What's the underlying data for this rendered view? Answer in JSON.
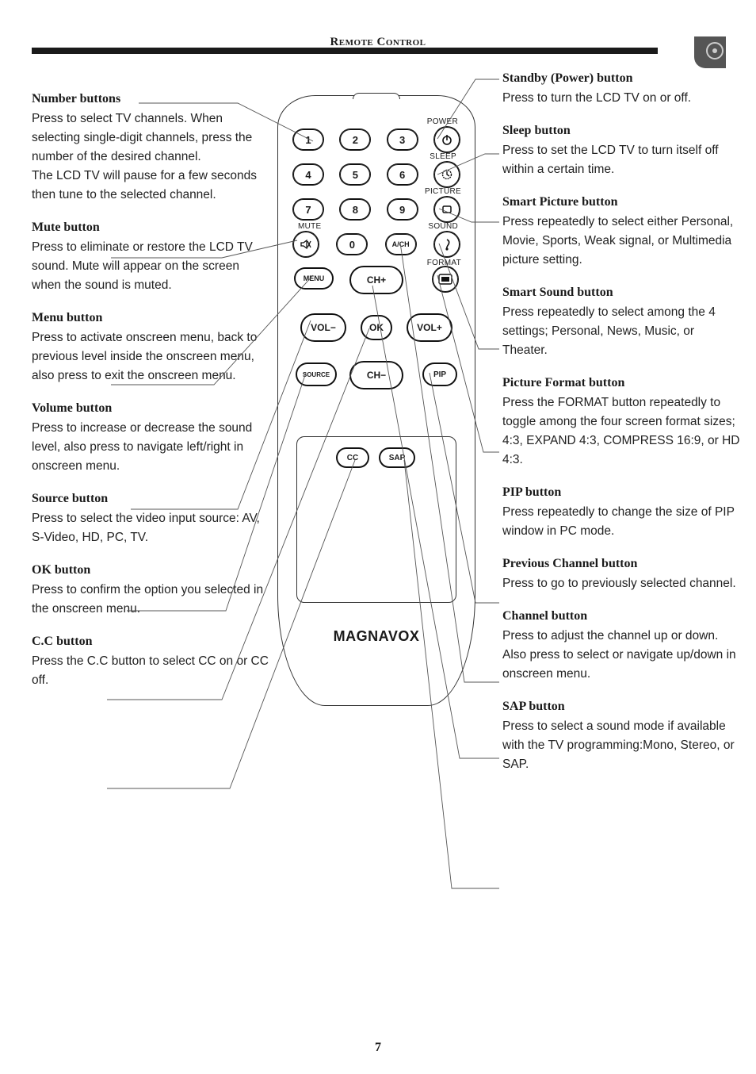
{
  "header": {
    "title": "Remote Control"
  },
  "page_number": "7",
  "left": [
    {
      "title": "Number buttons",
      "body": "Press to select TV channels. When selecting single-digit channels, press the number of the desired channel.\nThe LCD TV will pause for a few seconds then tune to the selected channel."
    },
    {
      "title": "Mute button",
      "body": "Press to eliminate or restore the LCD TV sound. Mute will appear on the screen when the sound is muted."
    },
    {
      "title": "Menu button",
      "body": "Press to activate onscreen menu, back to previous level inside the onscreen menu, also press to exit the onscreen menu."
    },
    {
      "title": "Volume button",
      "body": "Press to increase or decrease the sound level, also press to navigate left/right in onscreen menu."
    },
    {
      "title": "Source button",
      "body": "Press to select the video input source: AV, S-Video, HD, PC, TV."
    },
    {
      "title": "OK button",
      "body": "Press to confirm the option you selected in the onscreen menu."
    },
    {
      "title": "C.C button",
      "body": "Press the C.C button to select CC on or CC off."
    }
  ],
  "right": [
    {
      "title": "Standby (Power) button",
      "body": "Press to turn the LCD TV on or off."
    },
    {
      "title": "Sleep button",
      "body": "Press to set the LCD TV to turn itself off within a certain time."
    },
    {
      "title": "Smart Picture button",
      "body": "Press repeatedly to select either Personal, Movie, Sports, Weak signal, or Multimedia picture setting."
    },
    {
      "title": "Smart Sound button",
      "body": "Press repeatedly to select among the 4 settings; Personal, News, Music, or Theater."
    },
    {
      "title": "Picture Format  button",
      "body": "Press the FORMAT button repeatedly to toggle among the four screen format sizes; 4:3, EXPAND 4:3,  COMPRESS 16:9, or HD 4:3."
    },
    {
      "title": "PIP button",
      "body": "Press repeatedly to change the size of PIP window in PC mode."
    },
    {
      "title": "Previous Channel button",
      "body": "Press to go to previously selected channel."
    },
    {
      "title": "Channel button",
      "body": "Press to adjust the channel up or down. Also press to select or navigate up/down in onscreen menu."
    },
    {
      "title": "SAP button",
      "body": "Press to select a sound mode if available with the TV programming:Mono, Stereo, or SAP."
    }
  ],
  "remote": {
    "labels": {
      "power": "POWER",
      "sleep": "SLEEP",
      "picture": "PICTURE",
      "sound": "SOUND",
      "mute": "MUTE",
      "format": "FORMAT"
    },
    "buttons": {
      "n1": "1",
      "n2": "2",
      "n3": "3",
      "n4": "4",
      "n5": "5",
      "n6": "6",
      "n7": "7",
      "n8": "8",
      "n9": "9",
      "n0": "0",
      "ach": "A/CH",
      "menu": "MENU",
      "chp": "CH+",
      "chm": "CH−",
      "volp": "VOL+",
      "volm": "VOL−",
      "ok": "OK",
      "source": "SOURCE",
      "pip": "PIP",
      "cc": "CC",
      "sap": "SAP"
    },
    "brand": "MAGNAVOX"
  },
  "colors": {
    "text": "#1a1a1a",
    "line": "#444444",
    "header_bar": "#1a1a1a"
  }
}
